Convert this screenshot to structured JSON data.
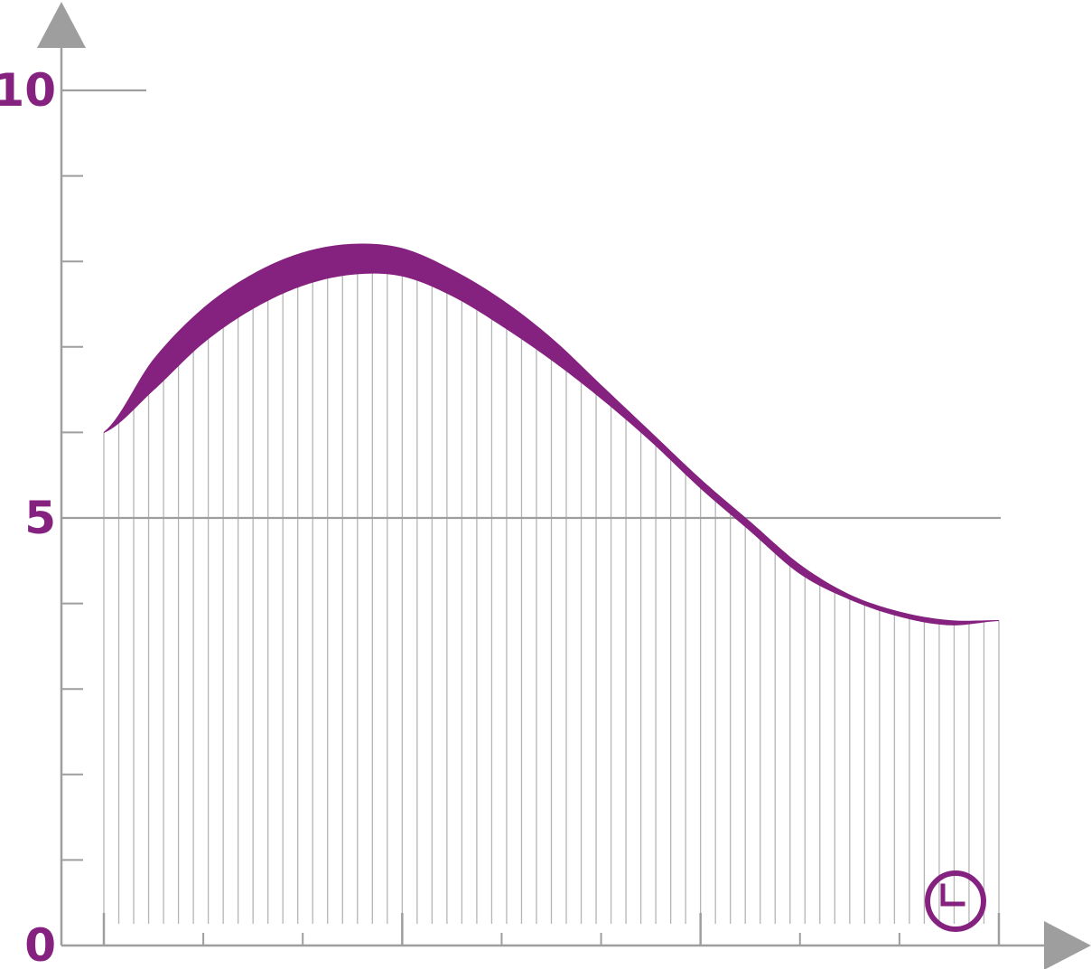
{
  "colors": {
    "accent": "#85217f",
    "axis": "#9e9e9e",
    "hatch": "#b5b5b5"
  },
  "icons": {
    "x_axis_icon": "clock-icon"
  },
  "chart_data": {
    "type": "area",
    "title": "",
    "xlabel": "",
    "ylabel": "",
    "ylim": [
      0,
      10
    ],
    "xlim": [
      0,
      9
    ],
    "y_ticks": [
      {
        "value": 0,
        "label": "0"
      },
      {
        "value": 5,
        "label": "5"
      },
      {
        "value": 10,
        "label": "10"
      }
    ],
    "y_minor_tick_step": 1,
    "x_major_ticks": [
      0,
      3,
      6,
      9
    ],
    "grid_lines_y": [
      5
    ],
    "hatch_step": 0.15,
    "series": [
      {
        "role": "upper",
        "x": [
          0,
          0.5,
          1,
          1.5,
          2,
          2.5,
          3,
          3.5,
          4,
          4.5,
          5,
          5.5,
          6,
          6.5,
          7,
          7.5,
          8,
          8.5,
          9
        ],
        "y": [
          6.0,
          6.85,
          7.45,
          7.85,
          8.1,
          8.2,
          8.15,
          7.9,
          7.55,
          7.1,
          6.55,
          6.0,
          5.45,
          4.95,
          4.45,
          4.1,
          3.9,
          3.8,
          3.8
        ]
      },
      {
        "role": "lower",
        "x": [
          0,
          0.5,
          1,
          1.5,
          2,
          2.5,
          3,
          3.5,
          4,
          4.5,
          5,
          5.5,
          6,
          6.5,
          7,
          7.5,
          8,
          8.5,
          9
        ],
        "y": [
          6.0,
          6.5,
          7.05,
          7.45,
          7.72,
          7.85,
          7.83,
          7.6,
          7.25,
          6.85,
          6.4,
          5.9,
          5.35,
          4.85,
          4.35,
          4.05,
          3.85,
          3.75,
          3.8
        ]
      }
    ]
  }
}
